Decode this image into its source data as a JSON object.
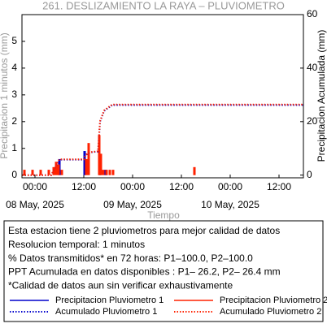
{
  "chart_data": {
    "type": "combo",
    "title": "261. DESLIZAMIENTO LA RAYA – PLUVIOMETRO",
    "x_label": "Tiempo",
    "y_label": "Precipitacion 1 minutos (mm)",
    "y2_label": "Precipitacion Acumulada (mm)",
    "xlim": [
      "2025-05-07 20:48",
      "2025-05-10 18:00"
    ],
    "xticks": [
      {
        "value": "2025-05-08 00:00",
        "label": "00:00"
      },
      {
        "value": "2025-05-08 12:00",
        "label": "12:00"
      },
      {
        "value": "2025-05-09 00:00",
        "label": "00:00"
      },
      {
        "value": "2025-05-09 12:00",
        "label": "12:00"
      },
      {
        "value": "2025-05-10 00:00",
        "label": "00:00"
      },
      {
        "value": "2025-05-10 12:00",
        "label": "12:00"
      }
    ],
    "x_date_labels": [
      {
        "value": "2025-05-08 00:00",
        "label": "08 May, 2025"
      },
      {
        "value": "2025-05-09 00:00",
        "label": "09 May, 2025"
      },
      {
        "value": "2025-05-10 00:00",
        "label": "10 May, 2025"
      }
    ],
    "ylim": [
      -0.1,
      6
    ],
    "yticks": [
      0,
      1,
      2,
      3,
      4,
      5
    ],
    "y2lim": [
      -1,
      60
    ],
    "y2ticks": [
      0,
      20,
      40,
      60
    ],
    "series": [
      {
        "name": "Precipitacion Pluviometro 1",
        "type": "bar",
        "color": "#0000cc",
        "x": [
          "2025-05-08 06:00",
          "2025-05-08 12:12",
          "2025-05-08 16:00",
          "2025-05-08 17:24"
        ],
        "values": [
          0.6,
          0.9,
          0.7,
          0.2
        ]
      },
      {
        "name": "Precipitacion Pluviometro 2",
        "type": "bar",
        "color": "#ff2200",
        "x": [
          "2025-05-07 21:24",
          "2025-05-07 23:24",
          "2025-05-08 01:24",
          "2025-05-08 03:24",
          "2025-05-08 04:36",
          "2025-05-08 05:12",
          "2025-05-08 05:48",
          "2025-05-08 06:36",
          "2025-05-08 12:36",
          "2025-05-08 13:12",
          "2025-05-08 15:48",
          "2025-05-08 16:12",
          "2025-05-08 16:48",
          "2025-05-08 17:36",
          "2025-05-08 18:24",
          "2025-05-08 19:12",
          "2025-05-09 15:12"
        ],
        "values": [
          0.2,
          0.2,
          0.2,
          0.2,
          0.3,
          0.5,
          0.4,
          0.2,
          0.6,
          1.2,
          1.5,
          0.8,
          0.2,
          0.2,
          0.2,
          0.2,
          0.3
        ]
      },
      {
        "name": "Acumulado Pluviometro 1",
        "type": "line",
        "axis": "y2",
        "color": "#0000cc",
        "x": [
          "2025-05-07 20:48",
          "2025-05-08 04:00",
          "2025-05-08 05:00",
          "2025-05-08 06:00",
          "2025-05-08 12:00",
          "2025-05-08 12:30",
          "2025-05-08 13:30",
          "2025-05-08 15:30",
          "2025-05-08 16:00",
          "2025-05-08 17:00",
          "2025-05-08 19:00",
          "2025-05-10 18:00"
        ],
        "values": [
          0,
          0,
          3,
          5.8,
          5.8,
          7.5,
          8.5,
          8.8,
          20,
          24,
          26.2,
          26.2
        ]
      },
      {
        "name": "Acumulado Pluviometro 2",
        "type": "line",
        "axis": "y2",
        "color": "#ff2200",
        "x": [
          "2025-05-07 20:48",
          "2025-05-08 04:00",
          "2025-05-08 05:00",
          "2025-05-08 06:00",
          "2025-05-08 12:00",
          "2025-05-08 12:30",
          "2025-05-08 13:30",
          "2025-05-08 15:30",
          "2025-05-08 16:00",
          "2025-05-08 17:00",
          "2025-05-08 19:00",
          "2025-05-10 18:00"
        ],
        "values": [
          0,
          0,
          3,
          5.9,
          5.9,
          7.6,
          8.6,
          8.9,
          20.2,
          24.2,
          26.4,
          26.4
        ]
      }
    ],
    "notes": [
      "Esta estacion tiene 2 pluviometros para mejor calidad de datos",
      "Resolucion temporal: 1 minutos",
      "% Datos transmitidos* en 72 horas: P1–100.0, P2–100.0",
      "PPT Acumulada en datos disponibles : P1– 26.2, P2– 26.4 mm",
      "*Calidad de datos aun sin verificar exhaustivamente"
    ]
  }
}
